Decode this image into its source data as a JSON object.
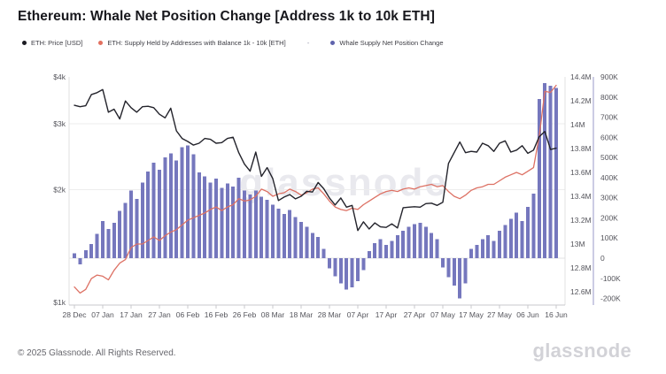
{
  "header": {
    "title": "Ethereum: Whale Net Position Change [Address 1k to 10k ETH]"
  },
  "legend": {
    "separator": "-",
    "items": [
      {
        "label": "ETH: Price [USD]",
        "color": "#1b1b22"
      },
      {
        "label": "ETH: Supply Held by Addresses with Balance 1k - 10k [ETH]",
        "color": "#e2705f"
      },
      {
        "label": "Whale Supply Net Position Change",
        "color": "#5f63ac"
      }
    ]
  },
  "watermark": "glassnode",
  "footer": {
    "copyright": "© 2025 Glassnode. All Rights Reserved.",
    "brand": "glassnode"
  },
  "chart_data": {
    "type": "mixed",
    "title": "Ethereum: Whale Net Position Change [Address 1k to 10k ETH]",
    "x_tick_labels": [
      {
        "label": "28 Dec",
        "day": 0
      },
      {
        "label": "07 Jan",
        "day": 10
      },
      {
        "label": "17 Jan",
        "day": 20
      },
      {
        "label": "27 Jan",
        "day": 30
      },
      {
        "label": "06 Feb",
        "day": 40
      },
      {
        "label": "16 Feb",
        "day": 50
      },
      {
        "label": "26 Feb",
        "day": 60
      },
      {
        "label": "08 Mar",
        "day": 70
      },
      {
        "label": "18 Mar",
        "day": 80
      },
      {
        "label": "28 Mar",
        "day": 90
      },
      {
        "label": "07 Apr",
        "day": 100
      },
      {
        "label": "17 Apr",
        "day": 110
      },
      {
        "label": "27 Apr",
        "day": 120
      },
      {
        "label": "07 May",
        "day": 130
      },
      {
        "label": "17 May",
        "day": 140
      },
      {
        "label": "27 May",
        "day": 150
      },
      {
        "label": "06 Jun",
        "day": 160
      },
      {
        "label": "16 Jun",
        "day": 170
      }
    ],
    "axes": {
      "price": {
        "side": "left",
        "scale": "log",
        "range": [
          1000,
          4000
        ],
        "ticks": [
          {
            "label": "$4k",
            "value": 4000
          },
          {
            "label": "$3k",
            "value": 3000
          },
          {
            "label": "$2k",
            "value": 2000
          },
          {
            "label": "$1k",
            "value": 1000
          }
        ]
      },
      "supply_m": {
        "side": "right",
        "scale": "linear",
        "range": [
          12.49,
          14.4
        ],
        "ticks": [
          {
            "label": "14.4M",
            "value": 14.4
          },
          {
            "label": "14.2M",
            "value": 14.2
          },
          {
            "label": "14M",
            "value": 14.0
          },
          {
            "label": "13.8M",
            "value": 13.8
          },
          {
            "label": "13.6M",
            "value": 13.6
          },
          {
            "label": "13.4M",
            "value": 13.4
          },
          {
            "label": "13.2M",
            "value": 13.2
          },
          {
            "label": "13M",
            "value": 13.0
          },
          {
            "label": "12.8M",
            "value": 12.8
          },
          {
            "label": "12.6M",
            "value": 12.6
          }
        ]
      },
      "npc_k": {
        "side": "far-right",
        "scale": "linear",
        "range": [
          -200,
          900
        ],
        "ticks": [
          {
            "label": "900K",
            "value": 900
          },
          {
            "label": "800K",
            "value": 800
          },
          {
            "label": "700K",
            "value": 700
          },
          {
            "label": "600K",
            "value": 600
          },
          {
            "label": "500K",
            "value": 500
          },
          {
            "label": "400K",
            "value": 400
          },
          {
            "label": "300K",
            "value": 300
          },
          {
            "label": "200K",
            "value": 200
          },
          {
            "label": "100K",
            "value": 100
          },
          {
            "label": "0",
            "value": 0
          },
          {
            "label": "-100K",
            "value": -100
          },
          {
            "label": "-200K",
            "value": -200
          }
        ]
      }
    },
    "sample_step_days": 2,
    "dates": [
      "28 Dec",
      "30 Dec",
      "01 Jan",
      "03 Jan",
      "05 Jan",
      "07 Jan",
      "09 Jan",
      "11 Jan",
      "13 Jan",
      "15 Jan",
      "17 Jan",
      "19 Jan",
      "21 Jan",
      "23 Jan",
      "25 Jan",
      "27 Jan",
      "29 Jan",
      "31 Jan",
      "02 Feb",
      "04 Feb",
      "06 Feb",
      "08 Feb",
      "10 Feb",
      "12 Feb",
      "14 Feb",
      "16 Feb",
      "18 Feb",
      "20 Feb",
      "22 Feb",
      "24 Feb",
      "26 Feb",
      "28 Feb",
      "02 Mar",
      "04 Mar",
      "06 Mar",
      "08 Mar",
      "10 Mar",
      "12 Mar",
      "14 Mar",
      "16 Mar",
      "18 Mar",
      "20 Mar",
      "22 Mar",
      "24 Mar",
      "26 Mar",
      "28 Mar",
      "30 Mar",
      "01 Apr",
      "03 Apr",
      "05 Apr",
      "07 Apr",
      "09 Apr",
      "11 Apr",
      "13 Apr",
      "15 Apr",
      "17 Apr",
      "19 Apr",
      "21 Apr",
      "23 Apr",
      "25 Apr",
      "27 Apr",
      "29 Apr",
      "01 May",
      "03 May",
      "05 May",
      "07 May",
      "09 May",
      "11 May",
      "13 May",
      "15 May",
      "17 May",
      "19 May",
      "21 May",
      "23 May",
      "25 May",
      "27 May",
      "29 May",
      "31 May",
      "02 Jun",
      "04 Jun",
      "06 Jun",
      "08 Jun",
      "10 Jun",
      "12 Jun",
      "14 Jun",
      "16 Jun"
    ],
    "series": [
      {
        "name": "ETH: Price [USD]",
        "type": "line",
        "axis": "price",
        "color": "#23232b",
        "values": [
          3360,
          3330,
          3350,
          3590,
          3630,
          3700,
          3220,
          3280,
          3090,
          3450,
          3310,
          3220,
          3330,
          3340,
          3310,
          3180,
          3110,
          3300,
          2870,
          2740,
          2690,
          2630,
          2660,
          2740,
          2725,
          2660,
          2670,
          2740,
          2760,
          2510,
          2340,
          2240,
          2520,
          2170,
          2290,
          2140,
          1870,
          1910,
          1940,
          1890,
          1920,
          1980,
          1970,
          2090,
          2010,
          1900,
          1820,
          1900,
          1795,
          1815,
          1555,
          1640,
          1570,
          1630,
          1590,
          1585,
          1620,
          1580,
          1790,
          1795,
          1800,
          1795,
          1835,
          1840,
          1815,
          1850,
          2350,
          2510,
          2680,
          2510,
          2530,
          2520,
          2660,
          2620,
          2530,
          2660,
          2700,
          2520,
          2550,
          2620,
          2500,
          2550,
          2770,
          2860,
          2560,
          2580
        ]
      },
      {
        "name": "ETH: Supply Held by Addresses with Balance 1k - 10k [ETH]",
        "type": "line",
        "axis": "supply_m",
        "color": "#dd7164",
        "values": [
          12.64,
          12.59,
          12.62,
          12.71,
          12.74,
          12.73,
          12.7,
          12.78,
          12.84,
          12.87,
          12.97,
          13.0,
          13.0,
          13.03,
          13.06,
          13.03,
          13.07,
          13.1,
          13.12,
          13.16,
          13.2,
          13.22,
          13.24,
          13.26,
          13.29,
          13.31,
          13.28,
          13.31,
          13.33,
          13.38,
          13.36,
          13.37,
          13.4,
          13.46,
          13.44,
          13.4,
          13.42,
          13.43,
          13.46,
          13.44,
          13.41,
          13.43,
          13.46,
          13.47,
          13.42,
          13.36,
          13.31,
          13.29,
          13.28,
          13.3,
          13.29,
          13.33,
          13.36,
          13.39,
          13.42,
          13.44,
          13.45,
          13.44,
          13.46,
          13.47,
          13.46,
          13.48,
          13.49,
          13.5,
          13.48,
          13.49,
          13.44,
          13.4,
          13.38,
          13.41,
          13.45,
          13.47,
          13.48,
          13.5,
          13.5,
          13.53,
          13.56,
          13.58,
          13.6,
          13.58,
          13.61,
          13.64,
          13.9,
          14.28,
          14.27,
          14.33
        ]
      },
      {
        "name": "Whale Supply Net Position Change",
        "type": "bar",
        "axis": "npc_k",
        "color": "#7577bd",
        "values": [
          25,
          -30,
          40,
          70,
          120,
          185,
          145,
          175,
          235,
          275,
          335,
          295,
          375,
          430,
          475,
          440,
          500,
          520,
          485,
          550,
          560,
          515,
          425,
          405,
          375,
          395,
          350,
          370,
          355,
          400,
          335,
          315,
          335,
          305,
          290,
          265,
          245,
          220,
          240,
          205,
          180,
          155,
          125,
          105,
          45,
          -50,
          -90,
          -125,
          -155,
          -145,
          -115,
          -60,
          35,
          75,
          95,
          65,
          85,
          115,
          135,
          155,
          170,
          175,
          155,
          125,
          95,
          -45,
          -95,
          -135,
          -200,
          -125,
          45,
          65,
          95,
          115,
          85,
          135,
          165,
          195,
          225,
          185,
          255,
          320,
          790,
          870,
          855,
          845
        ]
      }
    ]
  }
}
